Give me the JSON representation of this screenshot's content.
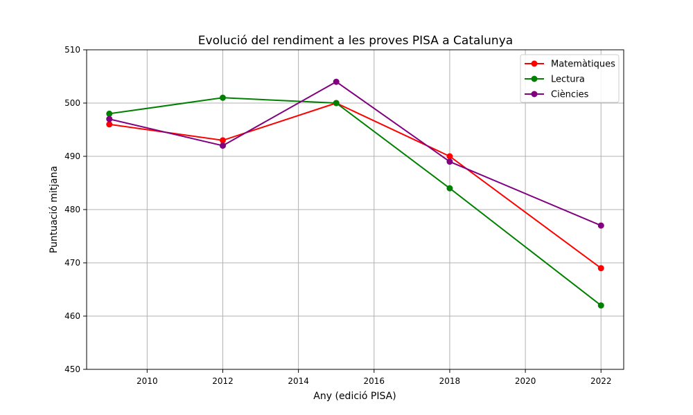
{
  "chart_data": {
    "type": "line",
    "title": "Evolució del rendiment a les proves PISA a Catalunya",
    "xlabel": "Any (edició PISA)",
    "ylabel": "Puntuació mitjana",
    "x": [
      2009,
      2012,
      2015,
      2018,
      2022
    ],
    "xlim": [
      2008.4,
      2022.6
    ],
    "ylim": [
      450,
      510
    ],
    "xticks": [
      2010,
      2012,
      2014,
      2016,
      2018,
      2020,
      2022
    ],
    "yticks": [
      450,
      460,
      470,
      480,
      490,
      500,
      510
    ],
    "grid": true,
    "legend_position": "top-right",
    "series": [
      {
        "name": "Matemàtiques",
        "color": "#ff0000",
        "values": [
          496,
          493,
          500,
          490,
          469
        ]
      },
      {
        "name": "Lectura",
        "color": "#008000",
        "values": [
          498,
          501,
          500,
          484,
          462
        ]
      },
      {
        "name": "Ciències",
        "color": "#800080",
        "values": [
          497,
          492,
          504,
          489,
          477
        ]
      }
    ]
  }
}
